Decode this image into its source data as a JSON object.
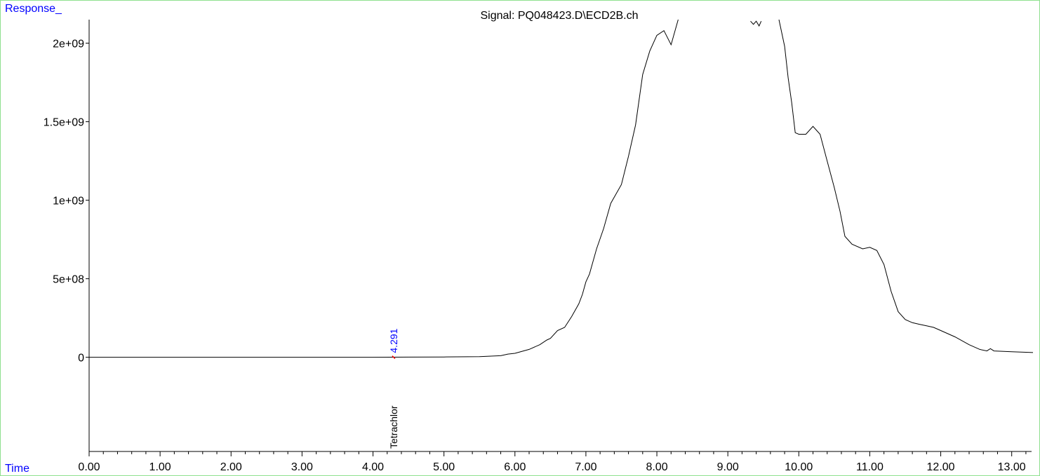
{
  "header": {
    "y_axis_name": "Response_",
    "title": "Signal: PQ048423.D\\ECD2B.ch",
    "x_axis_name": "Time"
  },
  "colors": {
    "frame": "#8ee08e",
    "axis_name": "#0000ff",
    "peak_time": "#0000ff",
    "peak_marker": "#ff0000",
    "trace": "#000000"
  },
  "peak": {
    "time": 4.291,
    "time_label": "4.291",
    "compound": "Tetrachlor"
  },
  "chart_data": {
    "type": "line",
    "title": "Signal: PQ048423.D\\ECD2B.ch",
    "xlabel": "Time",
    "ylabel": "Response_",
    "xlim": [
      0,
      13.28
    ],
    "ylim": [
      -600000000,
      2150000000
    ],
    "x_ticks": [
      0,
      1,
      2,
      3,
      4,
      5,
      6,
      7,
      8,
      9,
      10,
      11,
      12,
      13
    ],
    "x_tick_labels": [
      "0.00",
      "1.00",
      "2.00",
      "3.00",
      "4.00",
      "5.00",
      "6.00",
      "7.00",
      "8.00",
      "9.00",
      "10.00",
      "11.00",
      "12.00",
      "13.00"
    ],
    "y_ticks": [
      0,
      500000000,
      1000000000,
      1500000000,
      2000000000
    ],
    "y_tick_labels": [
      "0",
      "5e+08",
      "1e+09",
      "1.5e+09",
      "2e+09"
    ],
    "series": [
      {
        "segments": [
          [
            [
              0.0,
              0
            ],
            [
              1.0,
              0
            ],
            [
              2.0,
              0
            ],
            [
              3.0,
              0
            ],
            [
              4.0,
              0
            ],
            [
              4.5,
              1000000
            ],
            [
              5.0,
              2000000
            ],
            [
              5.5,
              4000000
            ],
            [
              5.8,
              10000000
            ],
            [
              5.9,
              20000000
            ],
            [
              6.0,
              25000000
            ],
            [
              6.2,
              50000000
            ],
            [
              6.35,
              80000000
            ],
            [
              6.45,
              110000000
            ],
            [
              6.5,
              120000000
            ],
            [
              6.6,
              170000000
            ],
            [
              6.7,
              190000000
            ],
            [
              6.8,
              260000000
            ],
            [
              6.9,
              340000000
            ],
            [
              6.95,
              400000000
            ],
            [
              7.0,
              480000000
            ],
            [
              7.05,
              530000000
            ],
            [
              7.15,
              690000000
            ],
            [
              7.25,
              820000000
            ],
            [
              7.35,
              980000000
            ],
            [
              7.5,
              1100000000
            ],
            [
              7.6,
              1280000000
            ],
            [
              7.7,
              1480000000
            ],
            [
              7.8,
              1800000000
            ],
            [
              7.9,
              1950000000
            ],
            [
              8.0,
              2050000000
            ],
            [
              8.1,
              2080000000
            ],
            [
              8.2,
              1990000000
            ],
            [
              8.3,
              2150000000
            ]
          ],
          [
            [
              9.32,
              2140000000
            ],
            [
              9.36,
              2120000000
            ],
            [
              9.4,
              2140000000
            ],
            [
              9.44,
              2110000000
            ],
            [
              9.47,
              2140000000
            ]
          ],
          [
            [
              9.72,
              2150000000
            ],
            [
              9.8,
              1980000000
            ],
            [
              9.85,
              1780000000
            ],
            [
              9.9,
              1620000000
            ],
            [
              9.95,
              1430000000
            ],
            [
              10.0,
              1420000000
            ],
            [
              10.1,
              1420000000
            ],
            [
              10.2,
              1470000000
            ],
            [
              10.3,
              1420000000
            ],
            [
              10.4,
              1250000000
            ],
            [
              10.5,
              1080000000
            ],
            [
              10.58,
              930000000
            ],
            [
              10.65,
              770000000
            ],
            [
              10.75,
              720000000
            ],
            [
              10.9,
              690000000
            ],
            [
              11.0,
              700000000
            ],
            [
              11.1,
              680000000
            ],
            [
              11.2,
              590000000
            ],
            [
              11.3,
              420000000
            ],
            [
              11.4,
              290000000
            ],
            [
              11.5,
              240000000
            ],
            [
              11.6,
              220000000
            ],
            [
              11.7,
              210000000
            ],
            [
              11.8,
              200000000
            ],
            [
              11.9,
              190000000
            ],
            [
              12.0,
              170000000
            ],
            [
              12.2,
              130000000
            ],
            [
              12.4,
              80000000
            ],
            [
              12.55,
              50000000
            ],
            [
              12.65,
              40000000
            ],
            [
              12.7,
              55000000
            ],
            [
              12.75,
              40000000
            ],
            [
              13.0,
              35000000
            ],
            [
              13.3,
              30000000
            ]
          ]
        ]
      }
    ],
    "grid": false
  }
}
